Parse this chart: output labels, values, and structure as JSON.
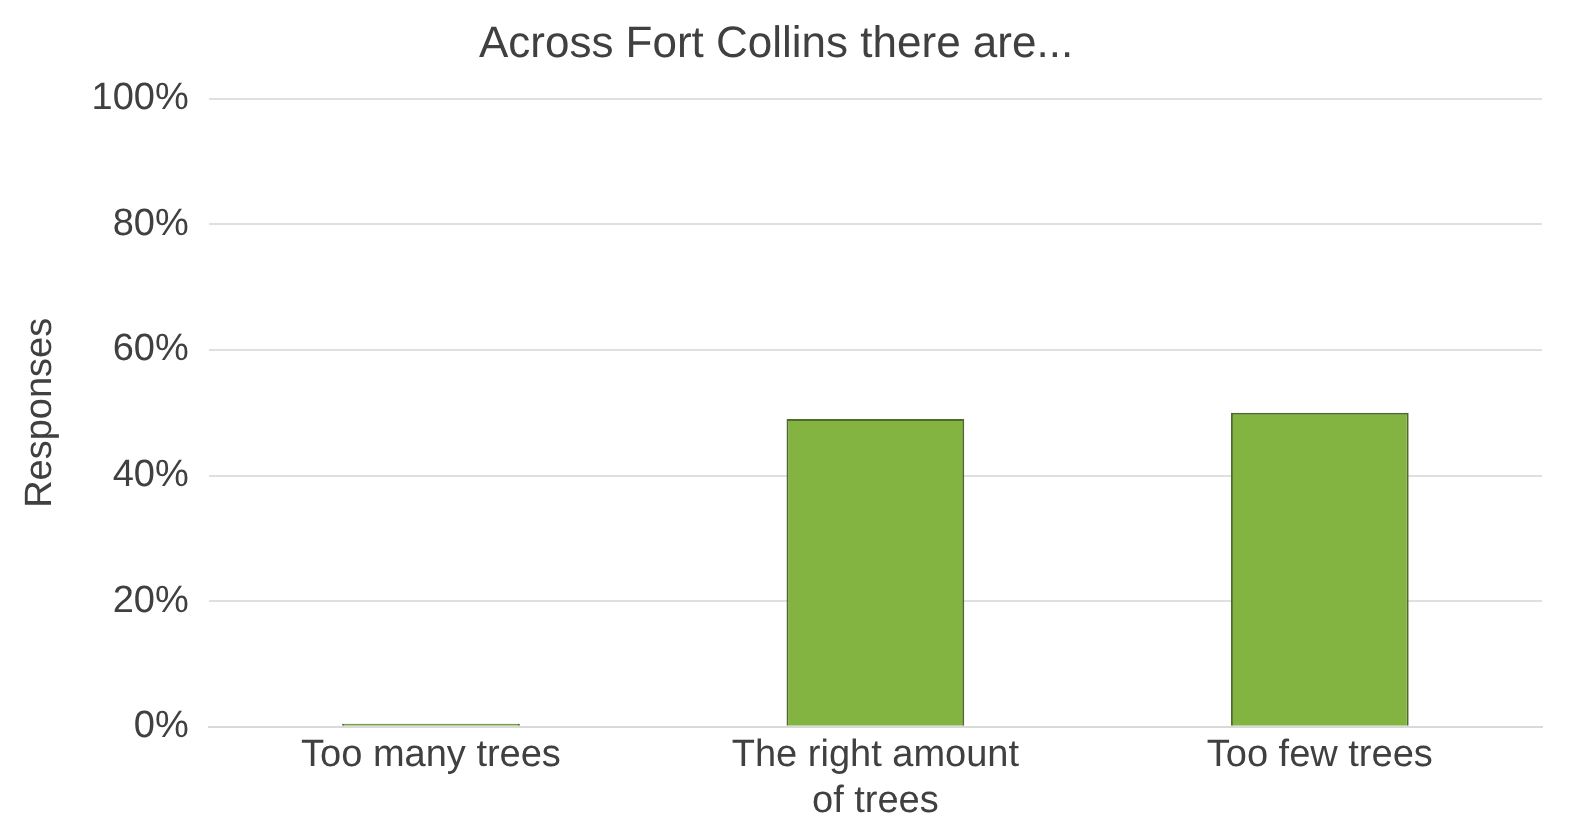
{
  "chart_data": {
    "type": "bar",
    "title": "Across Fort Collins there are...",
    "ylabel": "Responses",
    "categories": [
      "Too many trees",
      "The right amount of trees",
      "Too few trees"
    ],
    "values": [
      0.5,
      49,
      50
    ],
    "color": "#83b442",
    "ylim": [
      0,
      100
    ],
    "yticks": [
      {
        "value": 0,
        "label": "0%"
      },
      {
        "value": 20,
        "label": "20%"
      },
      {
        "value": 40,
        "label": "40%"
      },
      {
        "value": 60,
        "label": "60%"
      },
      {
        "value": 80,
        "label": "80%"
      },
      {
        "value": 100,
        "label": "100%"
      }
    ],
    "grid": "y",
    "legend": false
  }
}
